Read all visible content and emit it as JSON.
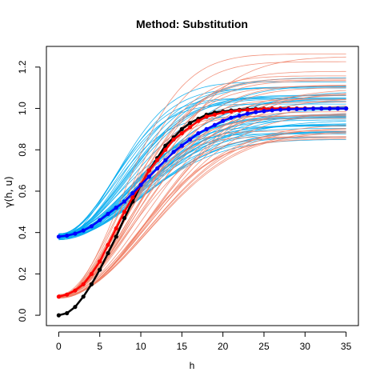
{
  "chart_data": {
    "type": "line",
    "title": "Method: Substitution",
    "xlabel": "h",
    "ylabel": "γ(h, u)",
    "xlim": [
      -1.5,
      36.5
    ],
    "ylim": [
      -0.05,
      1.3
    ],
    "x_ticks": [
      0,
      5,
      10,
      15,
      20,
      25,
      30,
      35
    ],
    "y_ticks": [
      0.0,
      0.2,
      0.4,
      0.6,
      0.8,
      1.0,
      1.2
    ],
    "x": [
      0,
      1,
      2,
      3,
      4,
      5,
      6,
      7,
      8,
      9,
      10,
      11,
      12,
      13,
      14,
      15,
      16,
      17,
      18,
      19,
      20,
      21,
      22,
      23,
      24,
      25,
      26,
      27,
      28,
      29,
      30,
      31,
      32,
      33,
      34,
      35
    ],
    "grid": false,
    "series": [
      {
        "color": "#000000",
        "marker": "circle",
        "values": [
          0.0,
          0.01,
          0.04,
          0.09,
          0.15,
          0.22,
          0.3,
          0.38,
          0.47,
          0.55,
          0.63,
          0.7,
          0.76,
          0.82,
          0.86,
          0.9,
          0.93,
          0.95,
          0.97,
          0.98,
          0.985,
          0.99,
          0.993,
          0.996,
          0.998,
          0.999,
          1.0,
          1.0,
          1.0,
          1.0,
          1.0,
          1.0,
          1.0,
          1.0,
          1.0,
          1.0
        ]
      },
      {
        "color": "#ff0000",
        "marker": "circle",
        "values": [
          0.09,
          0.1,
          0.12,
          0.15,
          0.2,
          0.26,
          0.34,
          0.42,
          0.5,
          0.57,
          0.63,
          0.7,
          0.75,
          0.8,
          0.85,
          0.88,
          0.91,
          0.94,
          0.96,
          0.97,
          0.98,
          0.985,
          0.99,
          0.993,
          0.996,
          0.998,
          0.999,
          1.0,
          1.0,
          1.0,
          1.0,
          1.0,
          1.0,
          1.0,
          1.0,
          1.0
        ]
      },
      {
        "color": "#0000ff",
        "marker": "circle",
        "values": [
          0.38,
          0.385,
          0.395,
          0.41,
          0.43,
          0.46,
          0.49,
          0.52,
          0.55,
          0.59,
          0.63,
          0.67,
          0.71,
          0.75,
          0.79,
          0.82,
          0.85,
          0.88,
          0.9,
          0.92,
          0.94,
          0.955,
          0.965,
          0.975,
          0.982,
          0.987,
          0.991,
          0.994,
          0.996,
          0.997,
          0.998,
          0.999,
          1.0,
          1.0,
          1.0,
          1.0
        ]
      }
    ],
    "ensembles": [
      {
        "color": "#00aaee",
        "count": 45,
        "start_range": [
          0.365,
          0.395
        ],
        "end_range": [
          0.82,
          1.15
        ]
      },
      {
        "color": "#f08066",
        "count": 35,
        "start_range": [
          0.08,
          0.1
        ],
        "end_range": [
          0.85,
          1.27
        ]
      }
    ]
  }
}
